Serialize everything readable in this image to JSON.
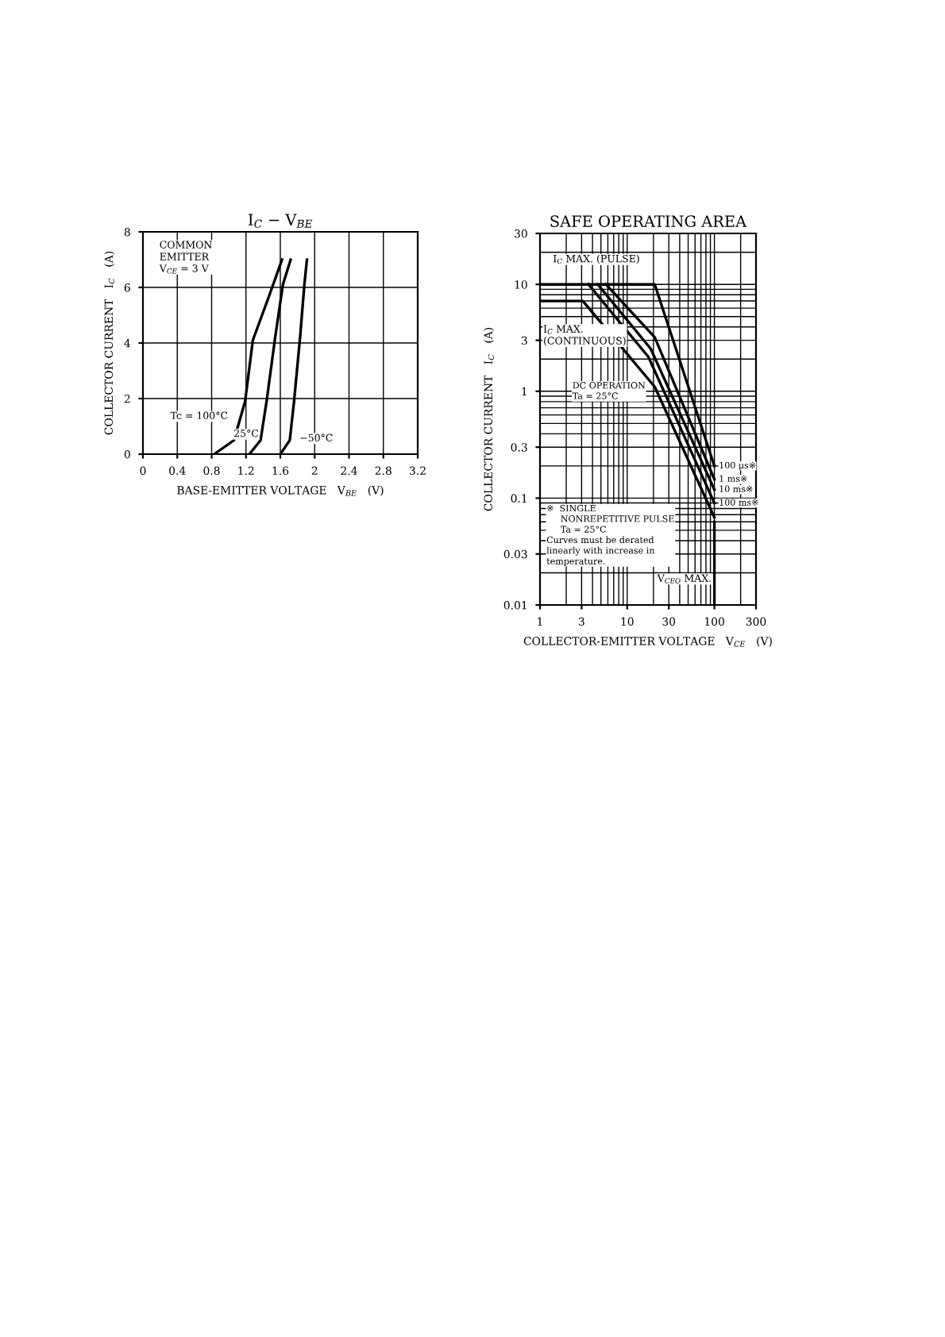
{
  "chart_data": [
    {
      "type": "line",
      "title": "I$_{C}$ − V$_{BE}$",
      "xlabel": "BASE-EMITTER VOLTAGE   V$_{BE}$   (V)",
      "ylabel": "COLLECTOR CURRENT   I$_{C}$   (A)",
      "xlim": [
        0,
        3.2
      ],
      "xticks": [
        0,
        0.4,
        0.8,
        1.2,
        1.6,
        2,
        2.4,
        2.8,
        3.2
      ],
      "ylim": [
        0,
        8
      ],
      "yticks": [
        0,
        2,
        4,
        6,
        8
      ],
      "grid": true,
      "series": [
        {
          "color": "#000000",
          "x": [
            0.83,
            1.06,
            1.19,
            1.28,
            1.47,
            1.62
          ],
          "values": [
            0,
            0.5,
            1.9,
            4.1,
            5.7,
            7.0
          ]
        },
        {
          "color": "#000000",
          "x": [
            1.24,
            1.37,
            1.44,
            1.54,
            1.63,
            1.72
          ],
          "values": [
            0,
            0.5,
            1.9,
            4.2,
            6.1,
            7.0
          ]
        },
        {
          "color": "#000000",
          "x": [
            1.6,
            1.71,
            1.76,
            1.83,
            1.88,
            1.91
          ],
          "values": [
            0,
            0.5,
            1.9,
            4.2,
            6.1,
            7.0
          ]
        }
      ],
      "annotations": [
        "COMMON\nEMITTER\nV$_{CE}$ = 3 V",
        "Tc = 100°C",
        "25°C",
        "−50°C"
      ]
    },
    {
      "type": "line",
      "title": "SAFE OPERATING AREA",
      "xlabel": "COLLECTOR-EMITTER VOLTAGE   V$_{CE}$   (V)",
      "ylabel": "COLLECTOR CURRENT   I$_{C}$   (A)",
      "log": "xy",
      "xlim": [
        1,
        300
      ],
      "xticks": [
        1,
        3,
        10,
        30,
        100,
        300
      ],
      "ylim": [
        0.01,
        30
      ],
      "yticks": [
        0.01,
        0.03,
        0.1,
        0.3,
        1,
        3,
        10,
        30
      ],
      "grid": true,
      "series": [
        {
          "name": "100 μs※",
          "color": "#000000",
          "x": [
            1,
            20.7,
            100
          ],
          "values": [
            10,
            10,
            0.2
          ]
        },
        {
          "name": "1 ms※",
          "color": "#000000",
          "x": [
            5.7,
            20.7,
            100
          ],
          "values": [
            10,
            3.2,
            0.15
          ]
        },
        {
          "name": "10 ms※",
          "color": "#000000",
          "x": [
            4.6,
            18.6,
            100
          ],
          "values": [
            10,
            2.5,
            0.12
          ]
        },
        {
          "name": "100 ms※",
          "color": "#000000",
          "x": [
            3.6,
            17.5,
            100
          ],
          "values": [
            10,
            2.1,
            0.09
          ]
        },
        {
          "color": "#000000",
          "x": [
            1,
            3.1,
            20.7,
            100
          ],
          "values": [
            7,
            7,
            1.1,
            0.066
          ]
        },
        {
          "color": "#000000",
          "x": [
            100,
            100
          ],
          "values": [
            0.01,
            0.06
          ]
        }
      ],
      "annotations": [
        "I$_{C}$ MAX. (PULSE)",
        "I$_{C}$ MAX.\n(CONTINUOUS)",
        "DC OPERATION\nTa = 25°C",
        "V$_{CEO}$ MAX.",
        "※  SINGLE\n     NONREPETITIVE PULSE\n     Ta = 25°C\nCurves must be derated\nlinearly with increase in\ntemperature."
      ]
    }
  ]
}
